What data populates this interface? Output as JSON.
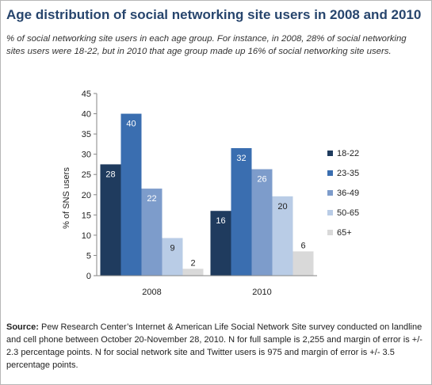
{
  "header": {
    "title": "Age distribution of social networking site users in 2008 and 2010",
    "subtitle": "% of social networking site users in each age group. For instance, in 2008, 28% of social networking sites users were 18-22, but in 2010 that age group made up 16% of social networking site users."
  },
  "footer": {
    "source_label": "Source:",
    "source_text": "Pew Research Center’s Internet & American Life Social Network Site survey conducted on landline and cell phone between October 20-November 28, 2010. N for full sample is 2,255 and margin of error is +/- 2.3 percentage points. N for social network site and Twitter users is 975 and margin of error is +/- 3.5 percentage points."
  },
  "chart_data": {
    "type": "bar",
    "title": "Age distribution of social networking site users in 2008 and 2010",
    "ylabel": "% of SNS users",
    "xlabel": "",
    "ylim": [
      0,
      45
    ],
    "yticks": [
      "0",
      "5",
      "10",
      "15",
      "20",
      "25",
      "30",
      "35",
      "40",
      "45"
    ],
    "grid": false,
    "legend_position": "right",
    "categories": [
      "2008",
      "2010"
    ],
    "series": [
      {
        "name": "18-22",
        "color": "#1f3b5e",
        "values": [
          27.5,
          16
        ],
        "labels": [
          "28",
          "16"
        ]
      },
      {
        "name": "23-35",
        "color": "#3a6eb0",
        "values": [
          40,
          31.5
        ],
        "labels": [
          "40",
          "32"
        ]
      },
      {
        "name": "36-49",
        "color": "#7d9ccb",
        "values": [
          21.5,
          26.3
        ],
        "labels": [
          "22",
          "26"
        ]
      },
      {
        "name": "50-65",
        "color": "#b9cce6",
        "values": [
          9.3,
          19.6
        ],
        "labels": [
          "9",
          "20"
        ]
      },
      {
        "name": "65+",
        "color": "#d9d9d9",
        "values": [
          1.7,
          6
        ],
        "labels": [
          "2",
          "6"
        ]
      }
    ]
  }
}
